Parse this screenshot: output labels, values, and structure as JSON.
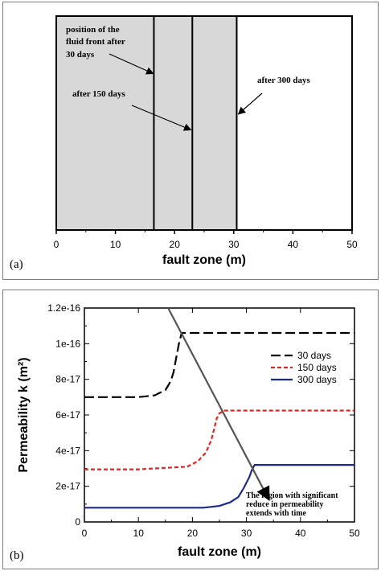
{
  "chart_data": [
    {
      "panel_label": "(a)",
      "type": "bar",
      "xlabel": "fault zone (m)",
      "xlim": [
        0,
        50
      ],
      "x_ticks": [
        0,
        10,
        20,
        30,
        40,
        50
      ],
      "shaded_region": {
        "from": 0,
        "to": 30.5,
        "color": "#d8d8d8"
      },
      "front_positions": [
        {
          "label": "position of the fluid front after 30 days",
          "x": 16.5
        },
        {
          "label": "after 150 days",
          "x": 23
        },
        {
          "label": "after 300 days",
          "x": 30.5
        }
      ],
      "annotations": {
        "front_30_lines": [
          "position of the fluid front after",
          "30 days"
        ],
        "front_30_line0": "position of the",
        "front_30_line1": "fluid front after",
        "front_30_line2": "30 days",
        "front_150": "after 150 days",
        "front_300": "after 300 days"
      }
    },
    {
      "panel_label": "(b)",
      "type": "line",
      "xlabel": "fault zone (m)",
      "ylabel": "Permeability k (m²)",
      "xlim": [
        0,
        50
      ],
      "ylim": [
        0,
        1.2e-16
      ],
      "x_ticks": [
        0,
        10,
        20,
        30,
        40,
        50
      ],
      "y_ticks": [
        {
          "value": 0,
          "label": "0"
        },
        {
          "value": 2e-17,
          "label": "2e-17"
        },
        {
          "value": 4e-17,
          "label": "4e-17"
        },
        {
          "value": 6e-17,
          "label": "6e-17"
        },
        {
          "value": 8e-17,
          "label": "8e-17"
        },
        {
          "value": 1e-16,
          "label": "1e-16"
        },
        {
          "value": 1.2e-16,
          "label": "1.2e-16"
        }
      ],
      "legend_position": "top-right",
      "series": [
        {
          "name": "30 days",
          "color": "#000000",
          "style": "dashed",
          "x": [
            0,
            5,
            10,
            13,
            15,
            16,
            16.5,
            17,
            17.5,
            18,
            50
          ],
          "y": [
            7e-17,
            7e-17,
            7e-17,
            7.1e-17,
            7.4e-17,
            7.9e-17,
            8.4e-17,
            9.2e-17,
            1e-16,
            1.06e-16,
            1.06e-16
          ]
        },
        {
          "name": "150 days",
          "color": "#e8221e",
          "style": "dotted",
          "x": [
            0,
            10,
            19,
            21,
            22.5,
            23.5,
            24,
            24.5,
            25,
            26,
            50
          ],
          "y": [
            2.95e-17,
            2.95e-17,
            3.1e-17,
            3.4e-17,
            3.9e-17,
            4.6e-17,
            5.2e-17,
            5.8e-17,
            6.1e-17,
            6.25e-17,
            6.25e-17
          ]
        },
        {
          "name": "300 days",
          "color": "#1c2a8c",
          "style": "solid",
          "x": [
            0,
            10,
            20,
            22,
            25,
            27,
            28.5,
            29.5,
            30.5,
            31,
            31.5,
            50
          ],
          "y": [
            8e-18,
            8e-18,
            8e-18,
            8e-18,
            9e-18,
            1.1e-17,
            1.4e-17,
            1.9e-17,
            2.5e-17,
            2.9e-17,
            3.2e-17,
            3.2e-17
          ]
        }
      ],
      "arrow": {
        "from": [
          15.5,
          1.2e-16
        ],
        "to": [
          34,
          1.35e-17
        ]
      },
      "annotation_lines": [
        "The region with significant",
        "reduce in permeability",
        "extends with time"
      ]
    }
  ]
}
